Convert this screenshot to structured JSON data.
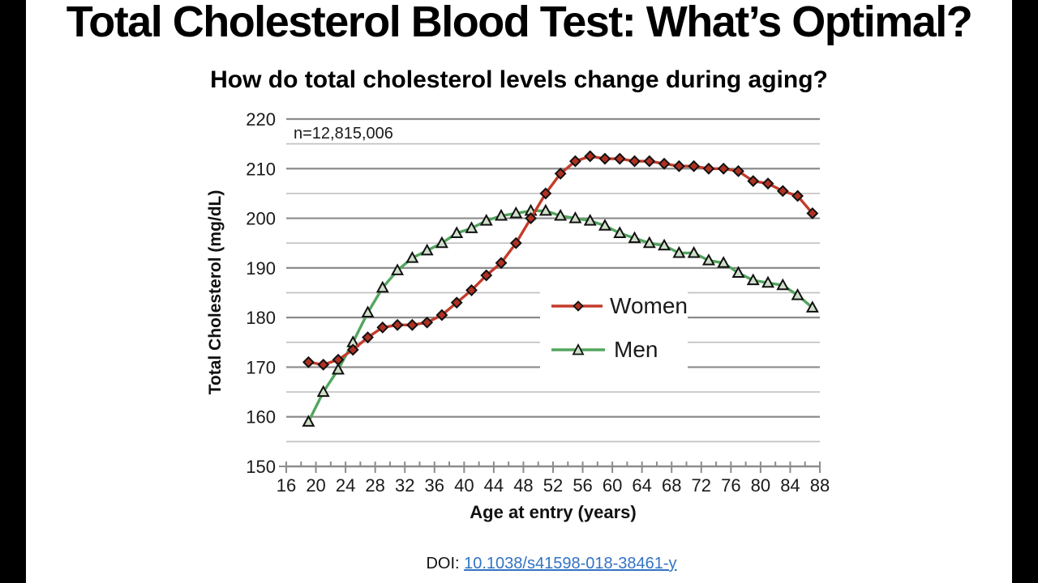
{
  "page": {
    "title": "Total Cholesterol Blood Test: What’s Optimal?",
    "footer": {
      "doi_label": "DOI:",
      "doi_link": "10.1038/s41598-018-38461-y"
    }
  },
  "chart_data": {
    "type": "line",
    "title": "How do total cholesterol levels change during aging?",
    "xlabel": "Age at entry (years)",
    "ylabel": "Total Cholesterol (mg/dL)",
    "annotation": "n=12,815,006",
    "xlim": [
      16,
      88
    ],
    "ylim": [
      150,
      220
    ],
    "x_ticks": [
      16,
      20,
      24,
      28,
      32,
      36,
      40,
      44,
      48,
      52,
      56,
      60,
      64,
      68,
      72,
      76,
      80,
      84,
      88
    ],
    "x_minor_ticks": [
      18,
      22,
      26,
      30,
      34,
      38,
      42,
      46,
      50,
      54,
      58,
      62,
      66,
      70,
      74,
      78,
      82,
      86
    ],
    "y_ticks": [
      150,
      160,
      170,
      180,
      190,
      200,
      210,
      220
    ],
    "y_minor_ticks": [
      155,
      165,
      175,
      185,
      195,
      205,
      215
    ],
    "grid": "horizontal",
    "legend_position": "inside-center-right",
    "x": [
      19,
      21,
      23,
      25,
      27,
      29,
      31,
      33,
      35,
      37,
      39,
      41,
      43,
      45,
      47,
      49,
      51,
      53,
      55,
      57,
      59,
      61,
      63,
      65,
      67,
      69,
      71,
      73,
      75,
      77,
      79,
      81,
      83,
      85,
      87
    ],
    "series": [
      {
        "name": "Women",
        "color": "#c43b2a",
        "marker": "diamond",
        "marker_fill": "#b03122",
        "values": [
          171,
          170.5,
          171.5,
          173.5,
          176,
          178,
          178.5,
          178.5,
          179,
          180.5,
          183,
          185.5,
          188.5,
          191,
          195,
          200,
          205,
          209,
          211.5,
          212.5,
          212,
          212,
          211.5,
          211.5,
          211,
          210.5,
          210.5,
          210,
          210,
          209.5,
          207.5,
          207,
          205.5,
          204.5,
          201
        ]
      },
      {
        "name": "Men",
        "color": "#53a55f",
        "marker": "triangle",
        "marker_fill": "#cfe0ca",
        "values": [
          159,
          165,
          169.5,
          175,
          181,
          186,
          189.5,
          192,
          193.5,
          195,
          197,
          198,
          199.5,
          200.5,
          201,
          201.5,
          201.5,
          200.5,
          200,
          199.5,
          198.5,
          197,
          196,
          195,
          194.5,
          193,
          193,
          191.5,
          191,
          189,
          187.5,
          187,
          186.5,
          184.5,
          182
        ]
      }
    ],
    "colors": {
      "grid_major": "#8c8c8c",
      "grid_minor": "#c2c2c2",
      "axis": "#8c8c8c",
      "tick_text": "#1a1a1a",
      "link_blue": "#3273c4"
    }
  }
}
